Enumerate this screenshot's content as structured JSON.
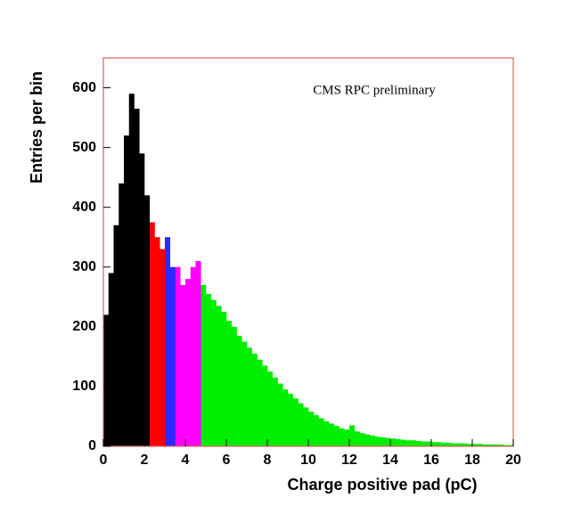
{
  "chart_data": {
    "type": "histogram",
    "annotation": "CMS RPC preliminary",
    "x_label": "Charge positive pad (pC)",
    "y_label": "Entries per bin",
    "xlim": [
      0,
      20
    ],
    "ylim": [
      0,
      650
    ],
    "xticks": [
      0,
      2,
      4,
      6,
      8,
      10,
      12,
      14,
      16,
      18,
      20
    ],
    "yticks": [
      0,
      100,
      200,
      300,
      400,
      500,
      600
    ],
    "frame_color": "#e06060",
    "series": [
      {
        "color": "#000000",
        "bins": [
          0,
          0.25,
          0.5,
          0.75,
          1,
          1.25,
          1.5,
          1.75,
          2,
          2.25
        ],
        "values": [
          220,
          290,
          370,
          440,
          520,
          590,
          565,
          490,
          420
        ]
      },
      {
        "color": "#ff0000",
        "bins": [
          0,
          0.25,
          0.5,
          0.75,
          1,
          1.25,
          1.5,
          1.75,
          2,
          2.25,
          2.5,
          2.75,
          3
        ],
        "values": [
          110,
          140,
          180,
          210,
          250,
          280,
          300,
          320,
          350,
          375,
          350,
          330
        ]
      },
      {
        "color": "#2a2aff",
        "bins": [
          0,
          0.25,
          0.5,
          0.75,
          1,
          1.25,
          1.5,
          1.75,
          2,
          2.25,
          2.5,
          2.75,
          3,
          3.25,
          3.5
        ],
        "values": [
          70,
          90,
          120,
          150,
          180,
          210,
          240,
          260,
          280,
          300,
          310,
          330,
          350,
          300
        ]
      },
      {
        "color": "#ff00ff",
        "bins": [
          0,
          0.25,
          0.5,
          0.75,
          1,
          1.25,
          1.5,
          1.75,
          2,
          2.25,
          2.5,
          2.75,
          3,
          3.25,
          3.5,
          3.75,
          4,
          4.25,
          4.5,
          4.75
        ],
        "values": [
          50,
          60,
          80,
          100,
          120,
          140,
          160,
          180,
          200,
          210,
          230,
          250,
          260,
          280,
          300,
          270,
          280,
          300,
          310
        ]
      },
      {
        "color": "#00ee00",
        "bins": [
          0,
          0.25,
          0.5,
          0.75,
          1,
          1.25,
          1.5,
          1.75,
          2,
          2.25,
          2.5,
          2.75,
          3,
          3.25,
          3.5,
          3.75,
          4,
          4.25,
          4.5,
          4.75,
          5,
          5.25,
          5.5,
          5.75,
          6,
          6.25,
          6.5,
          6.75,
          7,
          7.25,
          7.5,
          7.75,
          8,
          8.25,
          8.5,
          8.75,
          9,
          9.25,
          9.5,
          9.75,
          10,
          10.25,
          10.5,
          10.75,
          11,
          11.25,
          11.5,
          11.75,
          12,
          12.25,
          12.5,
          12.75,
          13,
          13.25,
          13.5,
          13.75,
          14,
          14.25,
          14.5,
          14.75,
          15,
          15.25,
          15.5,
          15.75,
          16,
          16.25,
          16.5,
          16.75,
          17,
          17.25,
          17.5,
          17.75,
          18,
          18.25,
          18.5,
          18.75,
          19,
          19.25,
          19.5,
          19.75,
          20
        ],
        "values": [
          40,
          50,
          60,
          70,
          85,
          100,
          115,
          130,
          145,
          160,
          175,
          190,
          205,
          215,
          230,
          240,
          250,
          260,
          265,
          270,
          255,
          245,
          235,
          225,
          210,
          200,
          185,
          175,
          165,
          155,
          145,
          135,
          125,
          115,
          105,
          95,
          88,
          80,
          72,
          65,
          58,
          52,
          47,
          42,
          38,
          34,
          30,
          28,
          35,
          25,
          22,
          20,
          18,
          16,
          15,
          14,
          13,
          12,
          11,
          10,
          10,
          9,
          8,
          8,
          7,
          7,
          6,
          6,
          5,
          5,
          5,
          4,
          4,
          4,
          3,
          3,
          3,
          3,
          2,
          2
        ]
      }
    ]
  }
}
